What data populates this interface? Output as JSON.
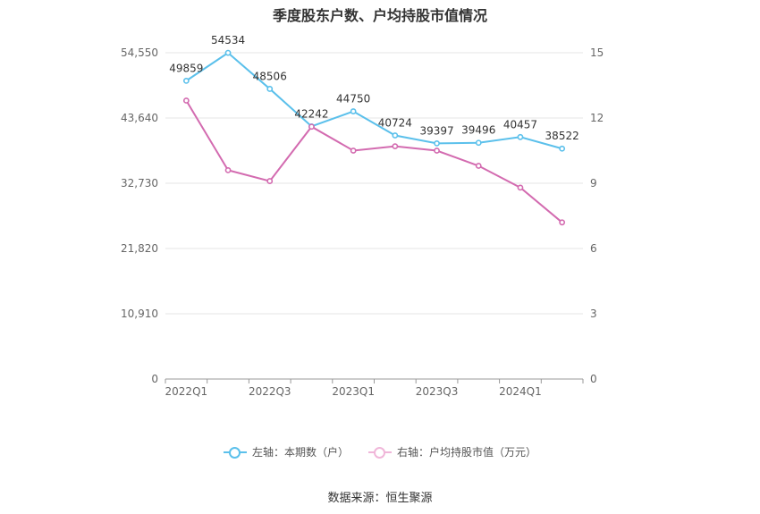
{
  "title": "季度股东户数、户均持股市值情况",
  "source": "数据来源：恒生聚源",
  "chart_data": {
    "type": "line",
    "x": [
      "2022Q1",
      "2022Q2",
      "2022Q3",
      "2022Q4",
      "2023Q1",
      "2023Q2",
      "2023Q3",
      "2023Q4",
      "2024Q1",
      "2024Q2"
    ],
    "x_tick_labels": [
      "2022Q1",
      "2022Q3",
      "2023Q1",
      "2023Q3",
      "2024Q1"
    ],
    "y_left": {
      "ticks": [
        "0",
        "10,910",
        "21,820",
        "32,730",
        "43,640",
        "54,550"
      ],
      "ylim": [
        0,
        54550
      ]
    },
    "y_right": {
      "ticks": [
        "0",
        "3",
        "6",
        "9",
        "12",
        "15"
      ],
      "ylim": [
        0,
        15
      ]
    },
    "series": [
      {
        "name": "左轴：本期数（户）",
        "axis": "left",
        "color": "#5bc0eb",
        "values": [
          49859,
          54534,
          48506,
          42242,
          44750,
          40724,
          39397,
          39496,
          40457,
          38522
        ],
        "labels": [
          "49859",
          "54534",
          "48506",
          "42242",
          "44750",
          "40724",
          "39397",
          "39496",
          "40457",
          "38522"
        ]
      },
      {
        "name": "右轴：户均持股市值（万元）",
        "axis": "right",
        "color": "#d36bb0",
        "values": [
          12.8,
          9.6,
          9.1,
          11.6,
          10.5,
          10.7,
          10.5,
          9.8,
          8.8,
          7.2
        ]
      }
    ],
    "grid": true,
    "legend": "bottom-center"
  }
}
